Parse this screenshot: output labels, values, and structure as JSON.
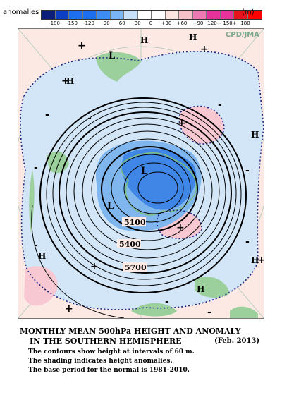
{
  "legend": {
    "label": "anomalies",
    "unit": "(m)",
    "ticks": [
      "-180",
      "-150",
      "-120",
      "-90",
      "-60",
      "-30",
      "0",
      "+30",
      "+60",
      "+90",
      "120+",
      "150+",
      "180"
    ],
    "colors": [
      "#0b1e7a",
      "#0c3fc6",
      "#1e6ef0",
      "#3c8cf2",
      "#78b4f6",
      "#c8e0fa",
      "#ffffff",
      "#fce4e0",
      "#f6c0c8",
      "#ee7ab4",
      "#e6329a",
      "#e8141c",
      "#ff0000"
    ]
  },
  "map": {
    "credit": "CPD/JMA",
    "colors": {
      "ocean": "#fce9e4",
      "negative_weak": "#d2e6f8",
      "negative_mid": "#7fb6ee",
      "negative_strong": "#3f86e6",
      "positive": "#f7c8d2",
      "land": "#9bcf9b"
    },
    "contour_labels": [
      "5100",
      "5400",
      "5700"
    ],
    "high_markers": [
      "H",
      "H",
      "H",
      "H",
      "H",
      "H",
      "H"
    ],
    "low_markers": [
      "L",
      "L",
      "L"
    ],
    "positive_markers": [
      "+",
      "+",
      "+",
      "+",
      "+",
      "+",
      "+",
      "+"
    ],
    "negative_markers": [
      "-",
      "-",
      "-",
      "-",
      "-",
      "-",
      "-",
      "-",
      "-"
    ]
  },
  "caption": {
    "title_line1": "MONTHLY MEAN 500hPa HEIGHT AND ANOMALY",
    "title_line2": "IN THE SOUTHERN HEMISPHERE",
    "date": "(Feb. 2013)",
    "note1": "The contours show height at intervals of 60 m.",
    "note2": "The shading indicates height anomalies.",
    "note3": "The base period for the normal is 1981-2010."
  }
}
